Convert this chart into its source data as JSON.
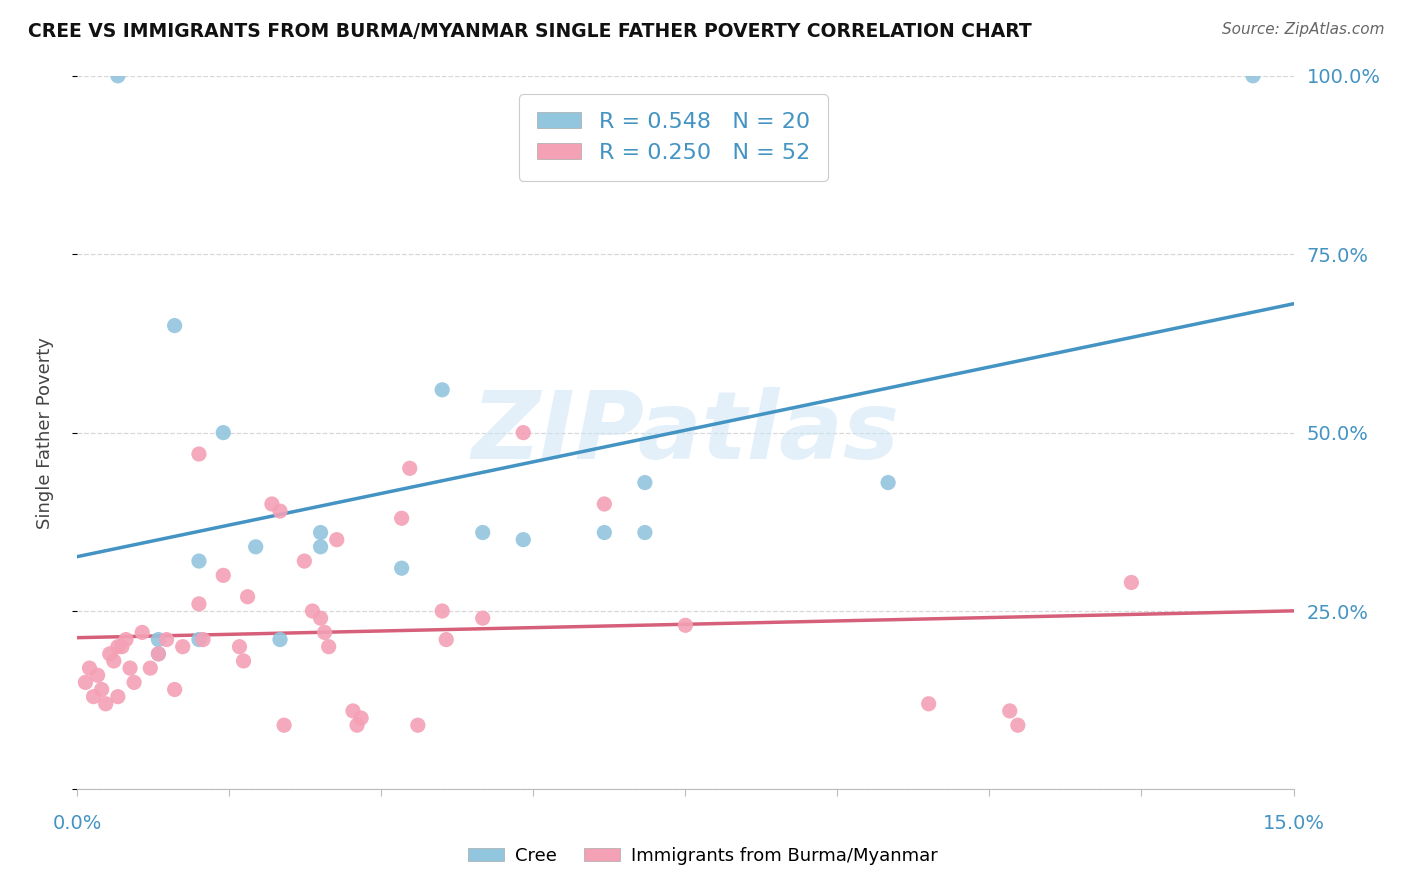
{
  "title": "CREE VS IMMIGRANTS FROM BURMA/MYANMAR SINGLE FATHER POVERTY CORRELATION CHART",
  "source": "Source: ZipAtlas.com",
  "ylabel": "Single Father Poverty",
  "watermark": "ZIPatlas",
  "cree_color": "#92c5de",
  "burma_color": "#f4a0b5",
  "trendline_cree_color": "#4393c3",
  "trendline_burma_color": "#d6607a",
  "background_color": "#ffffff",
  "grid_color": "#d8d8d8",
  "legend_label1": "R = 0.548   N = 20",
  "legend_label2": "R = 0.250   N = 52",
  "legend_bottom1": "Cree",
  "legend_bottom2": "Immigrants from Burma/Myanmar",
  "axis_label_color": "#4393c3",
  "cree_x": [
    0.5,
    1.0,
    1.0,
    1.2,
    1.5,
    1.5,
    1.8,
    2.2,
    2.5,
    3.0,
    3.0,
    4.0,
    4.5,
    5.0,
    5.5,
    6.5,
    7.0,
    7.0,
    10.0,
    14.5
  ],
  "cree_y": [
    100.0,
    19.0,
    21.0,
    65.0,
    21.0,
    32.0,
    50.0,
    34.0,
    21.0,
    36.0,
    34.0,
    31.0,
    56.0,
    36.0,
    35.0,
    36.0,
    43.0,
    36.0,
    43.0,
    100.0
  ],
  "burma_x": [
    0.1,
    0.15,
    0.2,
    0.25,
    0.3,
    0.35,
    0.4,
    0.45,
    0.5,
    0.5,
    0.55,
    0.6,
    0.65,
    0.7,
    0.8,
    0.9,
    1.0,
    1.1,
    1.2,
    1.3,
    1.5,
    1.5,
    1.55,
    1.8,
    2.0,
    2.05,
    2.1,
    2.4,
    2.5,
    2.55,
    2.8,
    2.9,
    3.0,
    3.05,
    3.1,
    3.2,
    3.4,
    3.45,
    3.5,
    4.0,
    4.1,
    4.2,
    4.5,
    4.55,
    5.0,
    5.5,
    6.5,
    7.5,
    10.5,
    11.5,
    11.6,
    13.0
  ],
  "burma_y": [
    15.0,
    17.0,
    13.0,
    16.0,
    14.0,
    12.0,
    19.0,
    18.0,
    20.0,
    13.0,
    20.0,
    21.0,
    17.0,
    15.0,
    22.0,
    17.0,
    19.0,
    21.0,
    14.0,
    20.0,
    47.0,
    26.0,
    21.0,
    30.0,
    20.0,
    18.0,
    27.0,
    40.0,
    39.0,
    9.0,
    32.0,
    25.0,
    24.0,
    22.0,
    20.0,
    35.0,
    11.0,
    9.0,
    10.0,
    38.0,
    45.0,
    9.0,
    25.0,
    21.0,
    24.0,
    50.0,
    40.0,
    23.0,
    12.0,
    11.0,
    9.0,
    29.0
  ],
  "xmin": 0.0,
  "xmax": 15.0,
  "ymin": 0.0,
  "ymax": 100.0
}
